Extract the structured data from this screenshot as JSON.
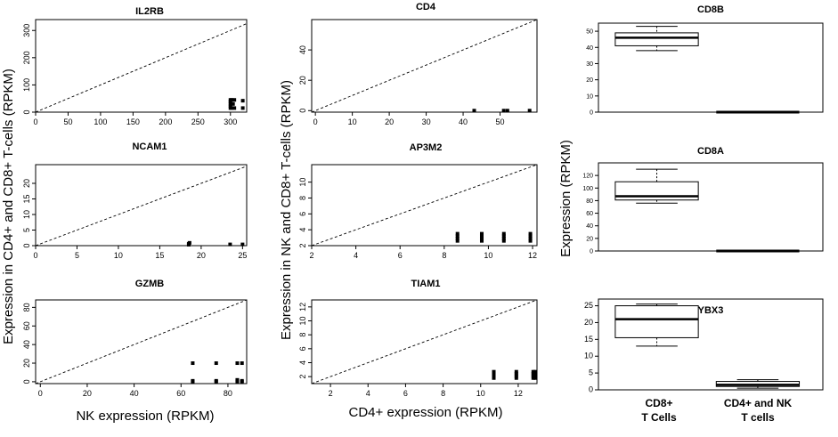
{
  "figure": {
    "col1_ylabel": "Expression in CD4+ and CD8+ T-cells (RPKM)",
    "col1_xlabel": "NK expression (RPKM)",
    "col2_ylabel": "Expression in NK and CD8+ T-cells (RPKM)",
    "col2_xlabel": "CD4+ expression (RPKM)",
    "col3_ylabel": "Expression (RPKM)"
  },
  "chart_data": [
    {
      "type": "scatter",
      "title": "IL2RB",
      "xlim": [
        0,
        325
      ],
      "ylim": [
        0,
        340
      ],
      "xticks": [
        0,
        50,
        100,
        150,
        200,
        250,
        300
      ],
      "yticks": [
        0,
        100,
        200,
        300
      ],
      "reference_line": "y = x (dashed)",
      "points": [
        [
          300,
          15
        ],
        [
          300,
          22
        ],
        [
          300,
          30
        ],
        [
          300,
          38
        ],
        [
          300,
          45
        ],
        [
          302,
          15
        ],
        [
          302,
          45
        ],
        [
          304,
          30
        ],
        [
          306,
          15
        ],
        [
          306,
          45
        ],
        [
          319,
          15
        ],
        [
          319,
          42
        ]
      ]
    },
    {
      "type": "scatter",
      "title": "NCAM1",
      "xlim": [
        0,
        25.5
      ],
      "ylim": [
        0,
        26
      ],
      "xticks": [
        0,
        5,
        10,
        15,
        20,
        25
      ],
      "yticks": [
        0,
        5,
        10,
        15,
        20
      ],
      "reference_line": "y = x (dashed)",
      "points": [
        [
          18.5,
          0.3
        ],
        [
          18.5,
          0.6
        ],
        [
          18.6,
          0.9
        ],
        [
          23.5,
          0.4
        ],
        [
          25,
          0.4
        ]
      ]
    },
    {
      "type": "scatter",
      "title": "GZMB",
      "xlim": [
        -2,
        88
      ],
      "ylim": [
        -2,
        88
      ],
      "xticks": [
        0,
        20,
        40,
        60,
        80
      ],
      "yticks": [
        0,
        20,
        40,
        60,
        80
      ],
      "reference_line": "y = x (dashed)",
      "points": [
        [
          65,
          0
        ],
        [
          65,
          1
        ],
        [
          65,
          20
        ],
        [
          75,
          0
        ],
        [
          75,
          1
        ],
        [
          75,
          20
        ],
        [
          84,
          0
        ],
        [
          84,
          1
        ],
        [
          84,
          2
        ],
        [
          84,
          20
        ],
        [
          86,
          0
        ],
        [
          86,
          1
        ],
        [
          86,
          20
        ]
      ]
    },
    {
      "type": "scatter",
      "title": "CD4",
      "xlim": [
        -1,
        60
      ],
      "ylim": [
        -1,
        60
      ],
      "xticks": [
        0,
        10,
        20,
        30,
        40,
        50
      ],
      "yticks": [
        0,
        20,
        40
      ],
      "reference_line": "y = x (dashed)",
      "points": [
        [
          43,
          0
        ],
        [
          51,
          0
        ],
        [
          52,
          0
        ],
        [
          58,
          0
        ]
      ]
    },
    {
      "type": "scatter",
      "title": "AP3M2",
      "xlim": [
        2,
        12.2
      ],
      "ylim": [
        2,
        12.2
      ],
      "xticks": [
        2,
        4,
        6,
        8,
        10,
        12
      ],
      "yticks": [
        2,
        4,
        6,
        8,
        10
      ],
      "reference_line": "y = x (dashed)",
      "points": [
        [
          8.6,
          2.6
        ],
        [
          8.6,
          2.9
        ],
        [
          8.6,
          3.2
        ],
        [
          8.6,
          3.5
        ],
        [
          9.7,
          2.6
        ],
        [
          9.7,
          2.9
        ],
        [
          9.7,
          3.2
        ],
        [
          9.7,
          3.5
        ],
        [
          10.7,
          2.6
        ],
        [
          10.7,
          2.9
        ],
        [
          10.7,
          3.2
        ],
        [
          10.7,
          3.5
        ],
        [
          11.9,
          2.6
        ],
        [
          11.9,
          2.9
        ],
        [
          11.9,
          3.2
        ],
        [
          11.9,
          3.5
        ]
      ]
    },
    {
      "type": "scatter",
      "title": "TIAM1",
      "xlim": [
        1,
        13
      ],
      "ylim": [
        1,
        13
      ],
      "xticks": [
        2,
        4,
        6,
        8,
        10,
        12
      ],
      "yticks": [
        2,
        4,
        6,
        8,
        10,
        12
      ],
      "reference_line": "y = x (dashed)",
      "points": [
        [
          10.7,
          1.8
        ],
        [
          10.7,
          2.1
        ],
        [
          10.7,
          2.4
        ],
        [
          10.7,
          2.7
        ],
        [
          11.9,
          1.8
        ],
        [
          11.9,
          2.1
        ],
        [
          11.9,
          2.4
        ],
        [
          11.9,
          2.7
        ],
        [
          12.8,
          1.8
        ],
        [
          12.8,
          2.1
        ],
        [
          12.8,
          2.4
        ],
        [
          12.8,
          2.7
        ],
        [
          12.9,
          1.8
        ],
        [
          12.9,
          2.1
        ],
        [
          12.9,
          2.4
        ],
        [
          12.9,
          2.7
        ]
      ]
    },
    {
      "type": "box",
      "title": "CD8B",
      "ylim": [
        0,
        55
      ],
      "yticks": [
        0,
        10,
        20,
        30,
        40,
        50
      ],
      "categories": [
        "CD8+\nT Cells",
        "CD4+ and NK\nT cells"
      ],
      "boxes": [
        {
          "min": 38,
          "q1": 41,
          "median": 46,
          "q3": 49,
          "max": 53
        },
        {
          "min": 0,
          "q1": 0,
          "median": 0,
          "q3": 0,
          "max": 0
        }
      ]
    },
    {
      "type": "box",
      "title": "CD8A",
      "ylim": [
        0,
        140
      ],
      "yticks": [
        0,
        20,
        40,
        60,
        80,
        100,
        120
      ],
      "categories": [
        "CD8+\nT Cells",
        "CD4+ and NK\nT cells"
      ],
      "boxes": [
        {
          "min": 76,
          "q1": 81,
          "median": 87,
          "q3": 110,
          "max": 130
        },
        {
          "min": 0,
          "q1": 0,
          "median": 0,
          "q3": 0,
          "max": 0
        }
      ]
    },
    {
      "type": "box",
      "title": "YBX3",
      "ylim": [
        0,
        27
      ],
      "yticks": [
        0,
        5,
        10,
        15,
        20,
        25
      ],
      "categories": [
        "CD8+\nT Cells",
        "CD4+ and NK\nT cells"
      ],
      "boxes": [
        {
          "min": 13,
          "q1": 15.5,
          "median": 21,
          "q3": 25,
          "max": 25.5
        },
        {
          "min": 0.5,
          "q1": 1,
          "median": 1.5,
          "q3": 2.5,
          "max": 3
        }
      ]
    }
  ]
}
